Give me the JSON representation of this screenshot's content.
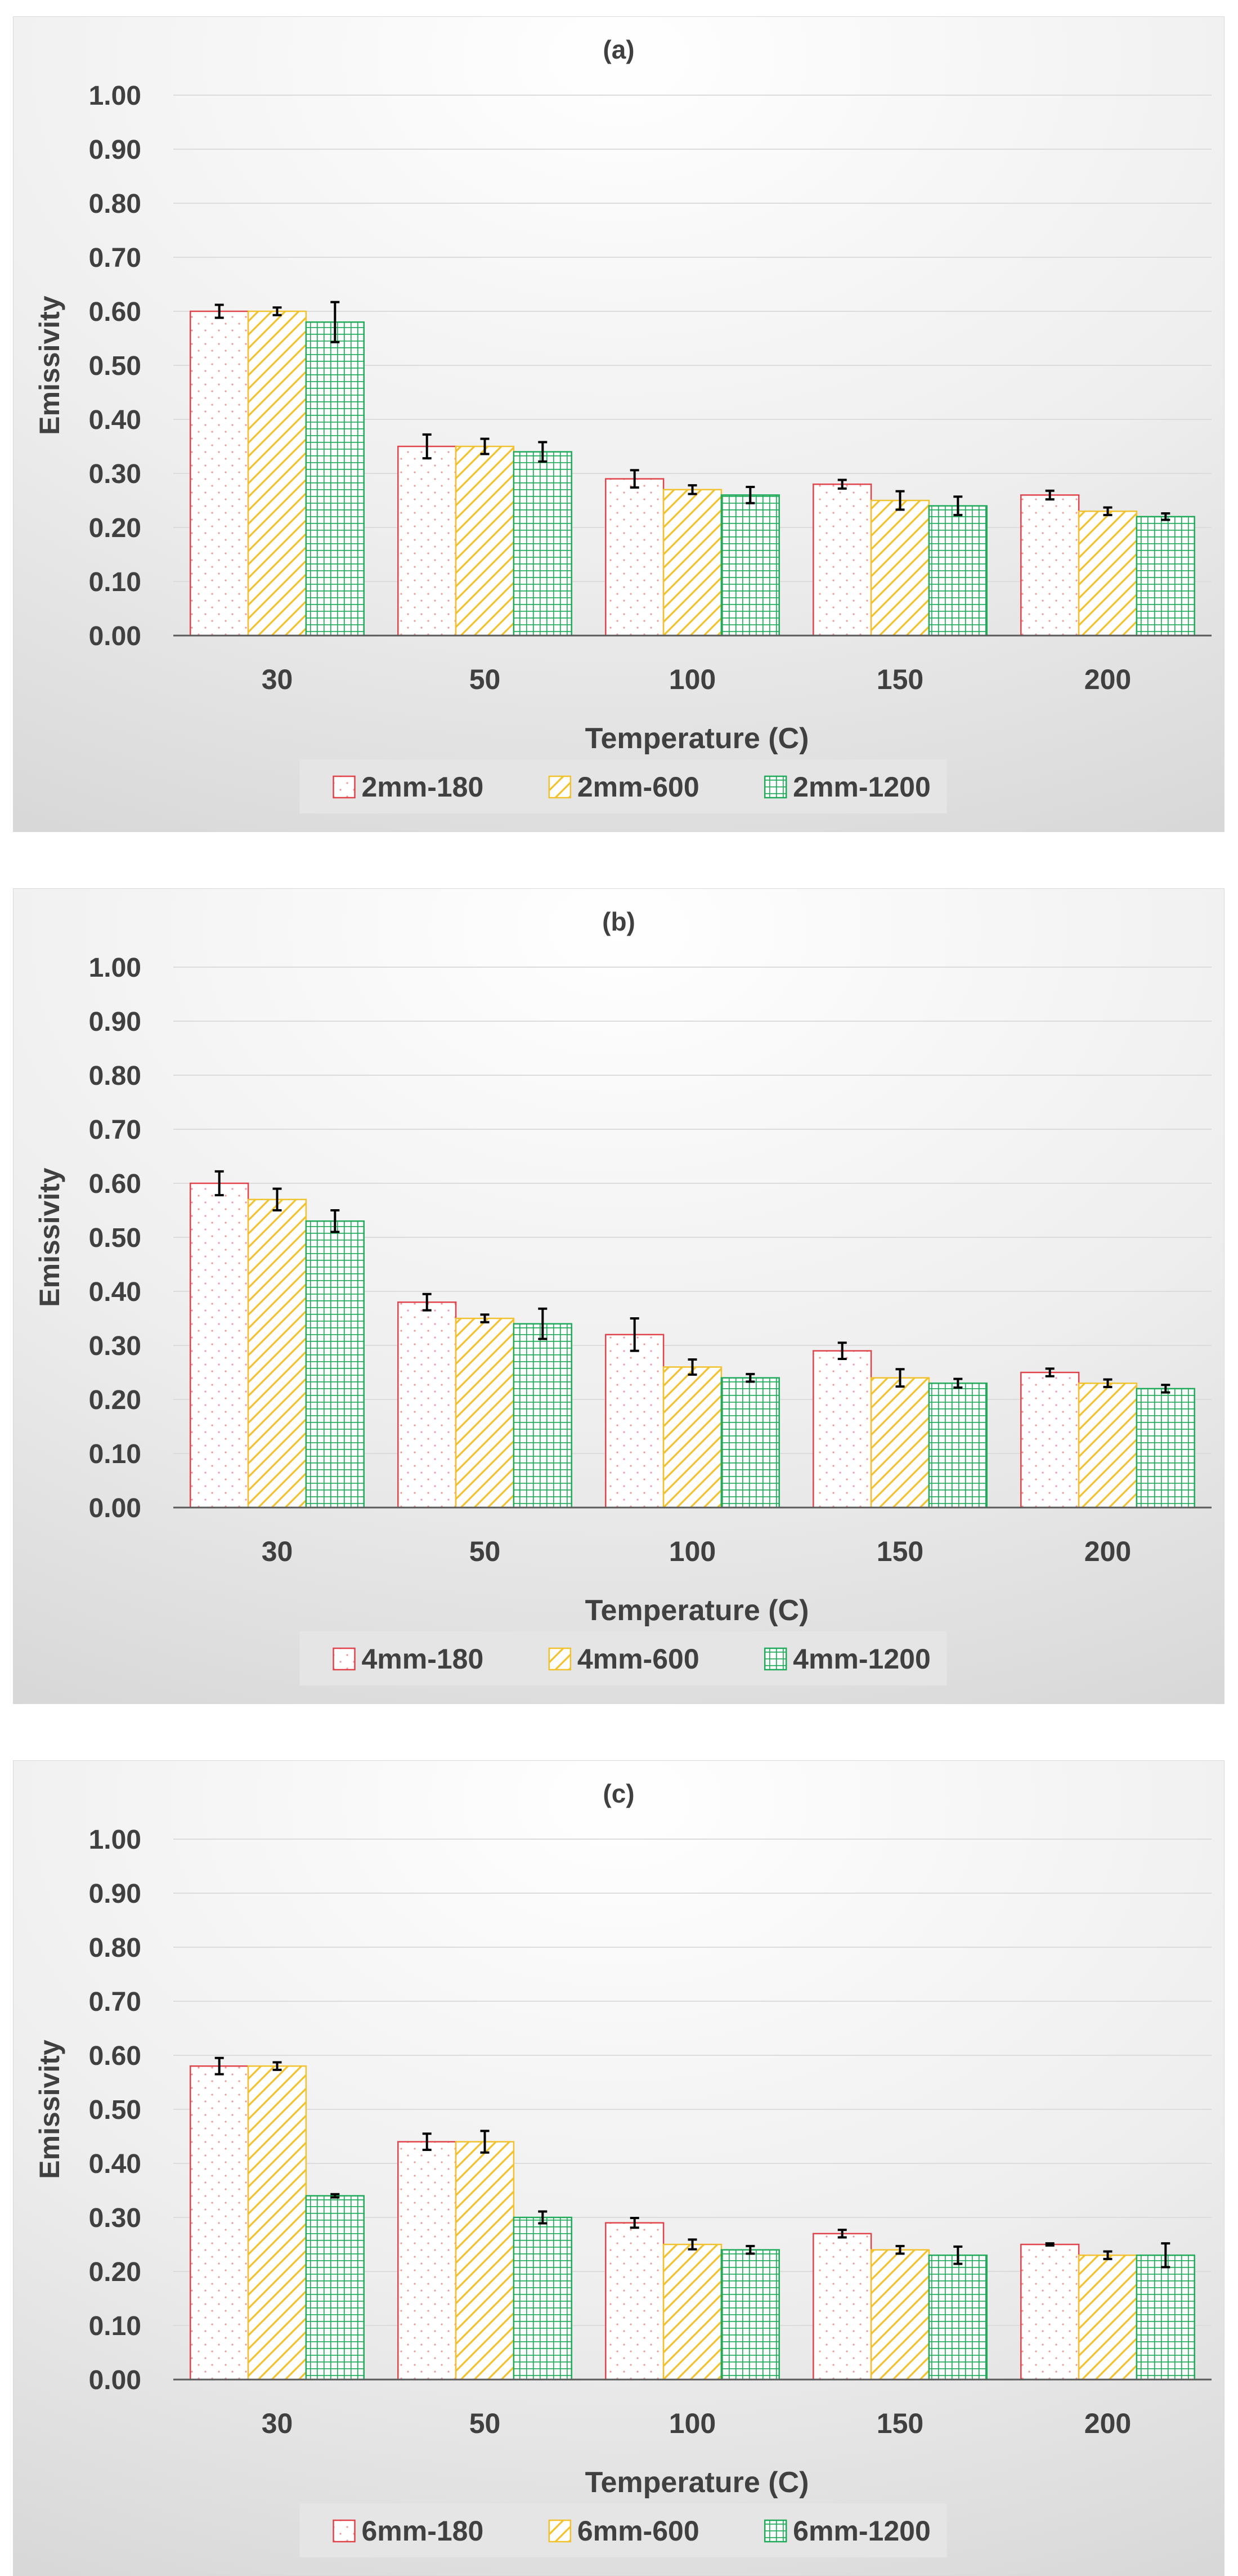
{
  "chart_data": [
    {
      "type": "bar",
      "title": "(a)",
      "xlabel": "Temperature (C)",
      "ylabel": "Emissivity",
      "ylim": [
        0,
        1
      ],
      "y_ticks": [
        "0.00",
        "0.10",
        "0.20",
        "0.30",
        "0.40",
        "0.50",
        "0.60",
        "0.70",
        "0.80",
        "0.90",
        "1.00"
      ],
      "categories": [
        "30",
        "50",
        "100",
        "150",
        "200"
      ],
      "legend_position": "bottom",
      "grid": true,
      "series": [
        {
          "name": "2mm-180",
          "values": [
            0.6,
            0.35,
            0.29,
            0.28,
            0.26
          ],
          "errors": [
            0.012,
            0.022,
            0.016,
            0.008,
            0.008
          ],
          "color": "#E0444A",
          "pattern": "dots"
        },
        {
          "name": "2mm-600",
          "values": [
            0.6,
            0.35,
            0.27,
            0.25,
            0.23
          ],
          "errors": [
            0.007,
            0.014,
            0.008,
            0.017,
            0.007
          ],
          "color": "#F2C12E",
          "pattern": "diagonal"
        },
        {
          "name": "2mm-1200",
          "values": [
            0.58,
            0.34,
            0.26,
            0.24,
            0.22
          ],
          "errors": [
            0.037,
            0.018,
            0.015,
            0.017,
            0.006
          ],
          "color": "#1FAA59",
          "pattern": "grid"
        }
      ]
    },
    {
      "type": "bar",
      "title": "(b)",
      "xlabel": "Temperature (C)",
      "ylabel": "Emissivity",
      "ylim": [
        0,
        1
      ],
      "y_ticks": [
        "0.00",
        "0.10",
        "0.20",
        "0.30",
        "0.40",
        "0.50",
        "0.60",
        "0.70",
        "0.80",
        "0.90",
        "1.00"
      ],
      "categories": [
        "30",
        "50",
        "100",
        "150",
        "200"
      ],
      "legend_position": "bottom",
      "grid": true,
      "series": [
        {
          "name": "4mm-180",
          "values": [
            0.6,
            0.38,
            0.32,
            0.29,
            0.25
          ],
          "errors": [
            0.022,
            0.015,
            0.03,
            0.015,
            0.007
          ],
          "color": "#E0444A",
          "pattern": "dots"
        },
        {
          "name": "4mm-600",
          "values": [
            0.57,
            0.35,
            0.26,
            0.24,
            0.23
          ],
          "errors": [
            0.02,
            0.007,
            0.014,
            0.016,
            0.007
          ],
          "color": "#F2C12E",
          "pattern": "diagonal"
        },
        {
          "name": "4mm-1200",
          "values": [
            0.53,
            0.34,
            0.24,
            0.23,
            0.22
          ],
          "errors": [
            0.02,
            0.028,
            0.007,
            0.008,
            0.007
          ],
          "color": "#1FAA59",
          "pattern": "grid"
        }
      ]
    },
    {
      "type": "bar",
      "title": "(c)",
      "xlabel": "Temperature (C)",
      "ylabel": "Emissivity",
      "ylim": [
        0,
        1
      ],
      "y_ticks": [
        "0.00",
        "0.10",
        "0.20",
        "0.30",
        "0.40",
        "0.50",
        "0.60",
        "0.70",
        "0.80",
        "0.90",
        "1.00"
      ],
      "categories": [
        "30",
        "50",
        "100",
        "150",
        "200"
      ],
      "legend_position": "bottom",
      "grid": true,
      "series": [
        {
          "name": "6mm-180",
          "values": [
            0.58,
            0.44,
            0.29,
            0.27,
            0.25
          ],
          "errors": [
            0.015,
            0.015,
            0.009,
            0.007,
            0.002
          ],
          "color": "#E0444A",
          "pattern": "dots"
        },
        {
          "name": "6mm-600",
          "values": [
            0.58,
            0.44,
            0.25,
            0.24,
            0.23
          ],
          "errors": [
            0.007,
            0.02,
            0.009,
            0.007,
            0.007
          ],
          "color": "#F2C12E",
          "pattern": "diagonal"
        },
        {
          "name": "6mm-1200",
          "values": [
            0.34,
            0.3,
            0.24,
            0.23,
            0.23
          ],
          "errors": [
            0.003,
            0.011,
            0.007,
            0.016,
            0.022
          ],
          "color": "#1FAA59",
          "pattern": "grid"
        }
      ]
    }
  ]
}
